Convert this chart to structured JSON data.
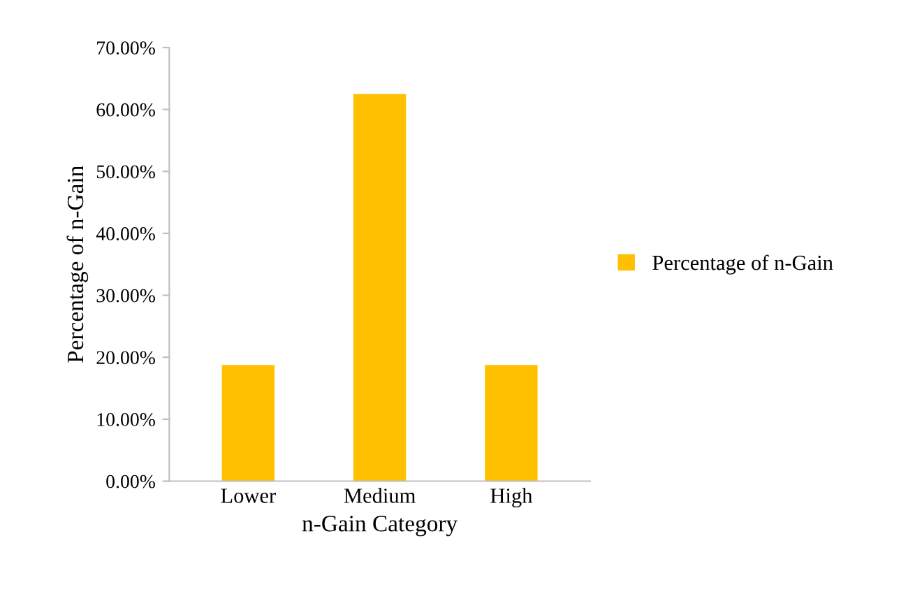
{
  "chart_data": {
    "type": "bar",
    "xlabel": "n-Gain Category",
    "ylabel": "Percentage of n-Gain",
    "categories": [
      "Lower",
      "Medium",
      "High"
    ],
    "series": [
      {
        "name": "Percentage of n-Gain",
        "color": "#ffc000",
        "values": [
          18.75,
          62.5,
          18.75
        ]
      }
    ],
    "ylim": [
      0,
      70
    ],
    "yticks": [
      {
        "value": 0,
        "label": "0.00%"
      },
      {
        "value": 10,
        "label": "10.00%"
      },
      {
        "value": 20,
        "label": "20.00%"
      },
      {
        "value": 30,
        "label": "30.00%"
      },
      {
        "value": 40,
        "label": "40.00%"
      },
      {
        "value": 50,
        "label": "50.00%"
      },
      {
        "value": 60,
        "label": "60.00%"
      },
      {
        "value": 70,
        "label": "70.00%"
      }
    ],
    "legend": "right",
    "grid": false
  }
}
